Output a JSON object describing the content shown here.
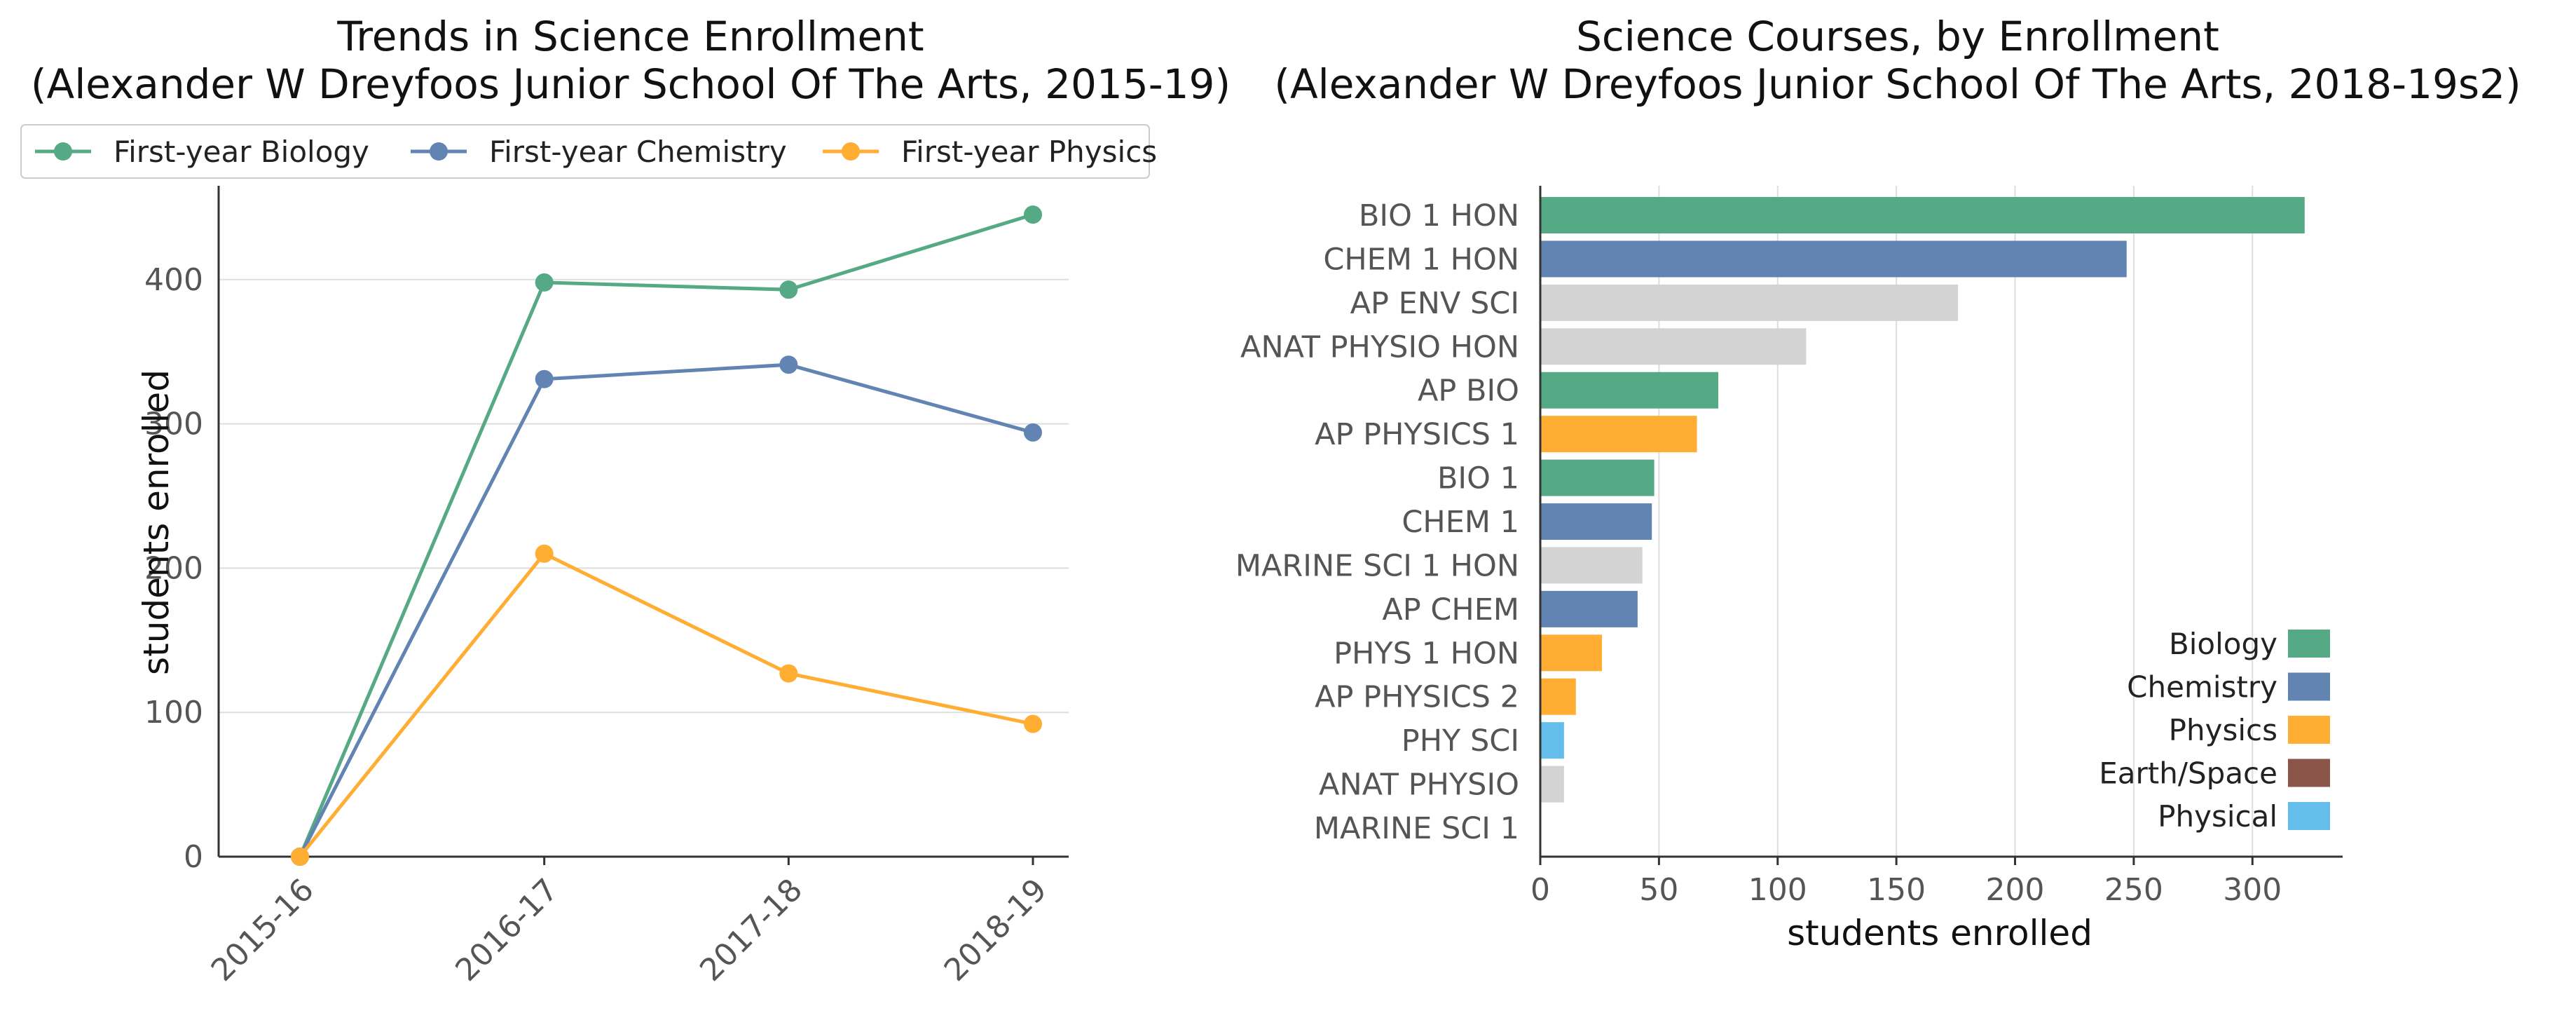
{
  "colors": {
    "biology": "#55a985",
    "chemistry": "#6184b2",
    "physics": "#ffad33",
    "earth_space": "#8b5549",
    "physical": "#64bdeb",
    "other": "#d3d3d3"
  },
  "chart_data": [
    {
      "type": "line",
      "title_line1": "Trends in Science Enrollment",
      "title_line2": "(Alexander W Dreyfoos Junior School Of The Arts, 2015-19)",
      "xlabel": "",
      "ylabel": "students enrolled",
      "categories": [
        "2015-16",
        "2016-17",
        "2017-18",
        "2018-19"
      ],
      "ylim": [
        0,
        465
      ],
      "yticks": [
        0,
        100,
        200,
        300,
        400
      ],
      "grid": "horizontal",
      "legend_position": "top",
      "series": [
        {
          "name": "First-year Biology",
          "color_key": "biology",
          "values": [
            0,
            398,
            393,
            445
          ]
        },
        {
          "name": "First-year Chemistry",
          "color_key": "chemistry",
          "values": [
            0,
            331,
            341,
            294
          ]
        },
        {
          "name": "First-year Physics",
          "color_key": "physics",
          "values": [
            0,
            210,
            127,
            92
          ]
        }
      ]
    },
    {
      "type": "bar",
      "orientation": "horizontal",
      "title_line1": "Science Courses, by Enrollment",
      "title_line2": "(Alexander W Dreyfoos Junior School Of The Arts, 2018-19s2)",
      "xlabel": "students enrolled",
      "ylabel": "",
      "xlim": [
        0,
        338
      ],
      "xticks": [
        0,
        50,
        100,
        150,
        200,
        250,
        300
      ],
      "grid": "vertical",
      "legend_position": "bottom-right",
      "categories": [
        "BIO 1 HON",
        "CHEM 1 HON",
        "AP ENV SCI",
        "ANAT PHYSIO HON",
        "AP BIO",
        "AP PHYSICS 1",
        "BIO 1",
        "CHEM 1",
        "MARINE SCI 1 HON",
        "AP CHEM",
        "PHYS 1 HON",
        "AP PHYSICS 2",
        "PHY SCI",
        "ANAT PHYSIO",
        "MARINE SCI 1"
      ],
      "values": [
        322,
        247,
        176,
        112,
        75,
        66,
        48,
        47,
        43,
        41,
        26,
        15,
        10,
        10,
        0
      ],
      "color_keys": [
        "biology",
        "chemistry",
        "other",
        "other",
        "biology",
        "physics",
        "biology",
        "chemistry",
        "other",
        "chemistry",
        "physics",
        "physics",
        "physical",
        "other",
        "other"
      ],
      "legend": [
        {
          "name": "Biology",
          "color_key": "biology"
        },
        {
          "name": "Chemistry",
          "color_key": "chemistry"
        },
        {
          "name": "Physics",
          "color_key": "physics"
        },
        {
          "name": "Earth/Space",
          "color_key": "earth_space"
        },
        {
          "name": "Physical",
          "color_key": "physical"
        }
      ]
    }
  ]
}
